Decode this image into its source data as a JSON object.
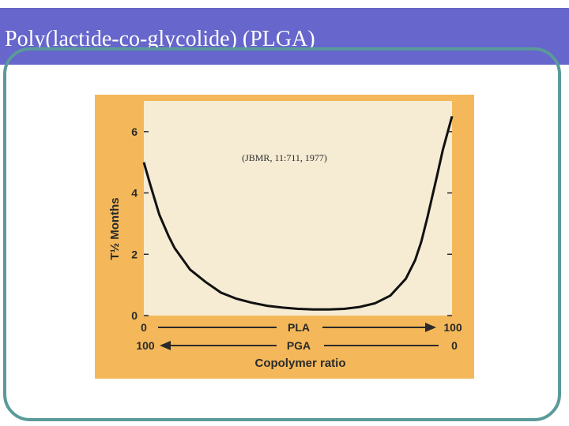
{
  "slide": {
    "title": "Poly(lactide-co-glycolide) (PLGA)"
  },
  "colors": {
    "title_bar": "#6666cc",
    "frame": "#5a9a9a",
    "chart_outer": "#f4b85a",
    "chart_plot": "#f6ecd4",
    "curve": "#111111",
    "axis_text": "#2a2a2a"
  },
  "chart_data": {
    "type": "line",
    "ylabel": "T½ Months",
    "xlabel": "Copolymer ratio",
    "annotation": "(JBMR, 11:711, 1977)",
    "x_axes": [
      {
        "name": "PLA",
        "start": "0",
        "end": "100"
      },
      {
        "name": "PGA",
        "start": "100",
        "end": "0"
      }
    ],
    "xlim": [
      0,
      100
    ],
    "ylim": [
      0,
      7
    ],
    "yticks": [
      0,
      2,
      4,
      6
    ],
    "grid": false,
    "series": [
      {
        "x": [
          0,
          2,
          5,
          8,
          10,
          15,
          20,
          25,
          30,
          35,
          40,
          45,
          50,
          55,
          60,
          65,
          70,
          75,
          80,
          85,
          88,
          90,
          92,
          95,
          97,
          100
        ],
        "y": [
          5.0,
          4.3,
          3.3,
          2.6,
          2.2,
          1.5,
          1.1,
          0.75,
          0.55,
          0.42,
          0.32,
          0.26,
          0.22,
          0.2,
          0.2,
          0.22,
          0.28,
          0.4,
          0.65,
          1.2,
          1.8,
          2.4,
          3.2,
          4.5,
          5.4,
          6.5
        ]
      }
    ]
  }
}
